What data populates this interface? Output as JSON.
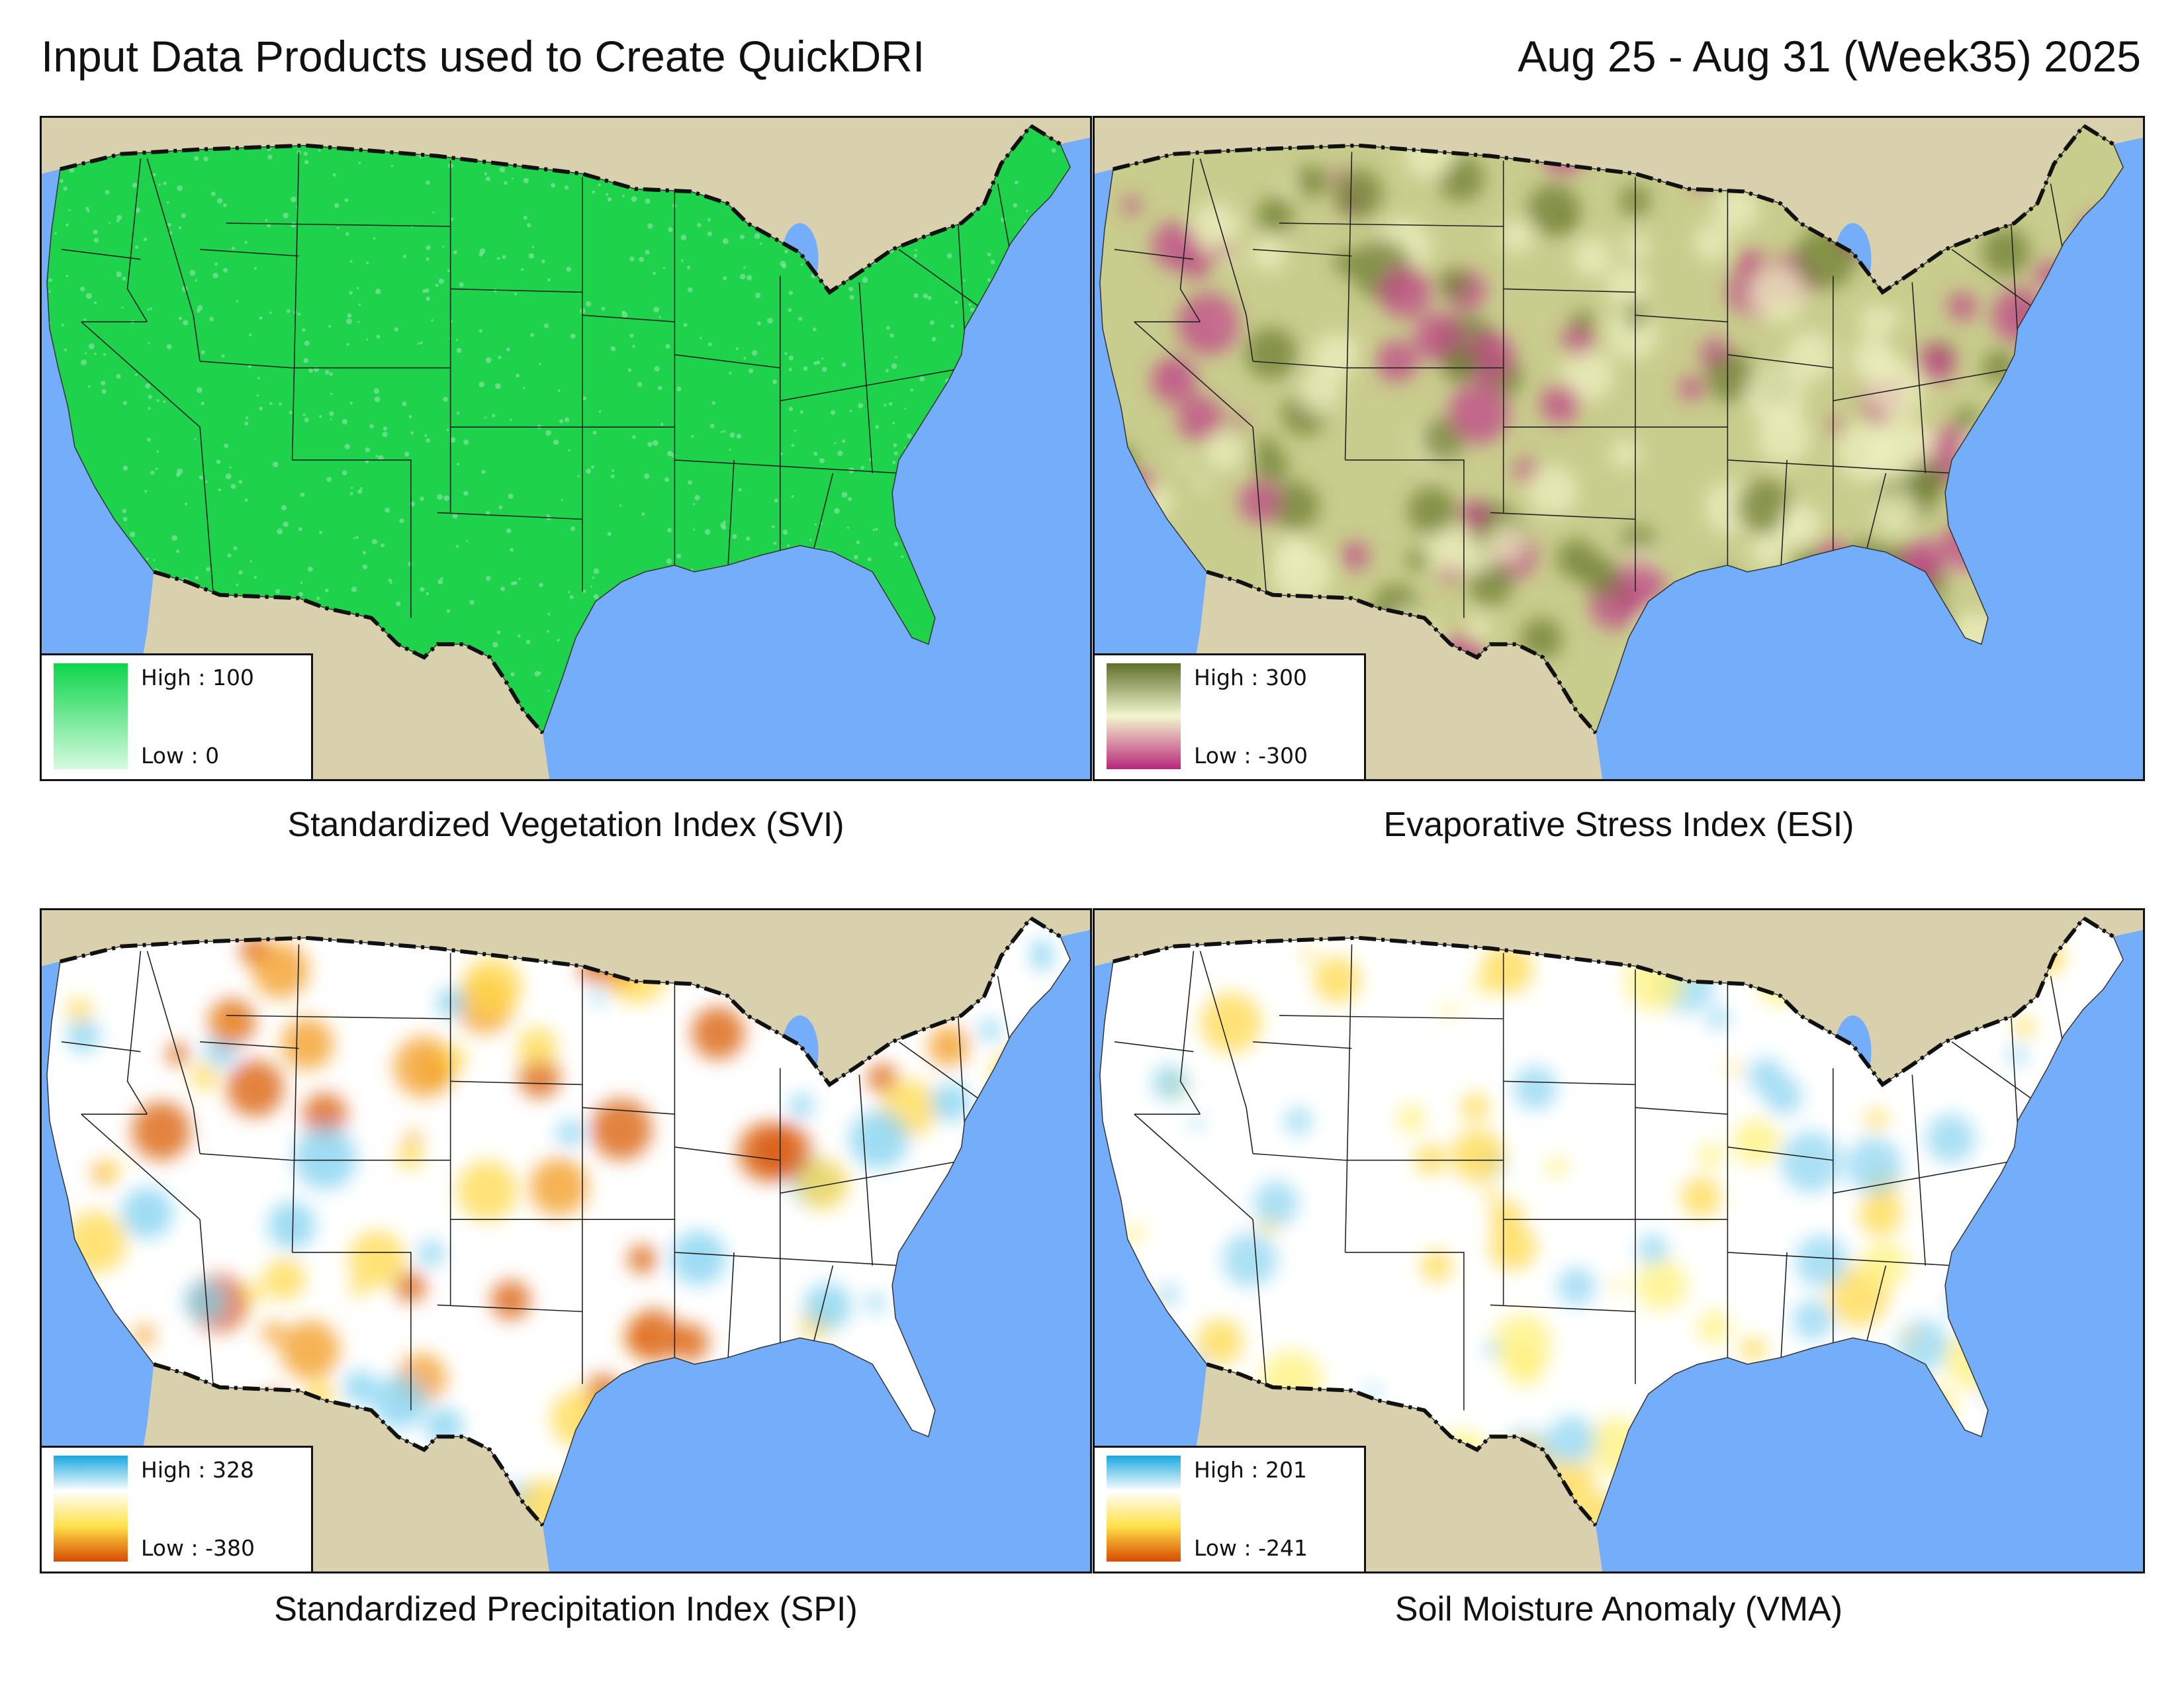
{
  "header": {
    "title": "Input Data Products used to Create QuickDRI",
    "period": "Aug 25 - Aug 31 (Week35) 2025"
  },
  "panels": [
    {
      "id": "svi",
      "caption": "Standardized Vegetation Index (SVI)",
      "legend": {
        "high": "High : 100",
        "low": "Low : 0",
        "colors": [
          "#0dd54a",
          "#d6fbe0"
        ]
      },
      "fill": "#1fd24c",
      "spots": []
    },
    {
      "id": "esi",
      "caption": "Evaporative Stress Index (ESI)",
      "legend": {
        "high": "High : 300",
        "low": "Low : -300",
        "colors": [
          "#5f6f2a",
          "#f4f6d0",
          "#b8277a"
        ]
      },
      "fill": "#c8cc8c",
      "spots": [
        "#6f7d33",
        "#eef0c0",
        "#c0468a"
      ]
    },
    {
      "id": "spi",
      "caption": "Standardized Precipitation Index (SPI)",
      "legend": {
        "high": "High : 328",
        "low": "Low : -380",
        "colors": [
          "#1aa8e0",
          "#ffffff",
          "#ffe14a",
          "#d84a00"
        ]
      },
      "fill": "#ffffff",
      "spots": [
        "#ffd84a",
        "#f39a18",
        "#d85a08",
        "#7fd0f0"
      ]
    },
    {
      "id": "vma",
      "caption": "Soil Moisture Anomaly (VMA)",
      "legend": {
        "high": "High : 201",
        "low": "Low : -241",
        "colors": [
          "#1aa8e0",
          "#ffffff",
          "#ffe14a",
          "#d84a00"
        ]
      },
      "fill": "#ffffff",
      "spots": [
        "#fff07a",
        "#ffd84a",
        "#8fd6f2"
      ]
    }
  ],
  "map_colors": {
    "water": "#74adfa",
    "land": "#d9d1ad",
    "border": "#111111"
  }
}
